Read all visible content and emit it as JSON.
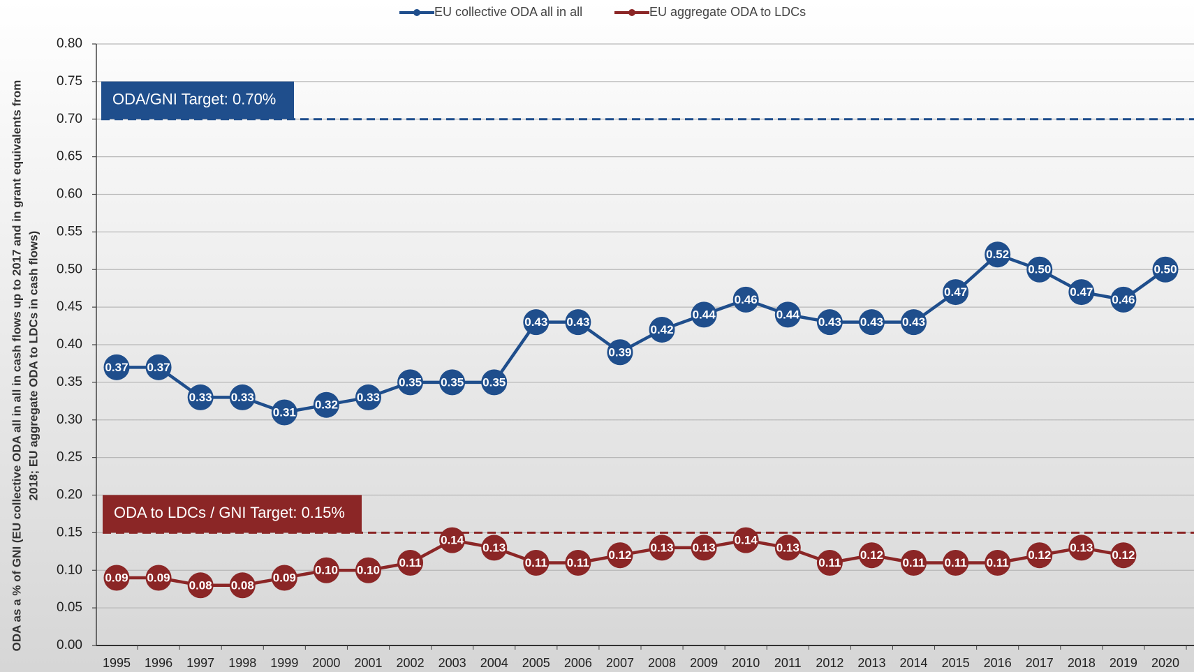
{
  "chart_data": {
    "type": "line",
    "y_label": [
      "ODA as a % of GNI (EU collective ODA all in all in cash flows up to 2017 and in grant equivalents from",
      "2018;  EU aggregate ODA to LDCs in cash flows)"
    ],
    "categories": [
      "1995",
      "1996",
      "1997",
      "1998",
      "1999",
      "2000",
      "2001",
      "2002",
      "2003",
      "2004",
      "2005",
      "2006",
      "2007",
      "2008",
      "2009",
      "2010",
      "2011",
      "2012",
      "2013",
      "2014",
      "2015",
      "2016",
      "2017",
      "2018",
      "2019",
      "2020"
    ],
    "series": [
      {
        "name": "EU collective ODA all in all",
        "color": "#1f4e8c",
        "values": [
          0.37,
          0.37,
          0.33,
          0.33,
          0.31,
          0.32,
          0.33,
          0.35,
          0.35,
          0.35,
          0.43,
          0.43,
          0.39,
          0.42,
          0.44,
          0.46,
          0.44,
          0.43,
          0.43,
          0.43,
          0.47,
          0.52,
          0.5,
          0.47,
          0.46,
          0.5
        ],
        "value_labels": [
          "0.37",
          "0.37",
          "0.33",
          "0.33",
          "0.31",
          "0.32",
          "0.33",
          "0.35",
          "0.35",
          "0.35",
          "0.43",
          "0.43",
          "0.39",
          "0.42",
          "0.44",
          "0.46",
          "0.44",
          "0.43",
          "0.43",
          "0.43",
          "0.47",
          "0.52",
          "0.50",
          "0.47",
          "0.46",
          "0.50"
        ]
      },
      {
        "name": "EU aggregate ODA to LDCs",
        "color": "#8b2626",
        "values": [
          0.09,
          0.09,
          0.08,
          0.08,
          0.09,
          0.1,
          0.1,
          0.11,
          0.14,
          0.13,
          0.11,
          0.11,
          0.12,
          0.13,
          0.13,
          0.14,
          0.13,
          0.11,
          0.12,
          0.11,
          0.11,
          0.11,
          0.12,
          0.13,
          0.12,
          null
        ],
        "value_labels": [
          "0.09",
          "0.09",
          "0.08",
          "0.08",
          "0.09",
          "0.10",
          "0.10",
          "0.11",
          "0.14",
          "0.13",
          "0.11",
          "0.11",
          "0.12",
          "0.13",
          "0.13",
          "0.14",
          "0.13",
          "0.11",
          "0.12",
          "0.11",
          "0.11",
          "0.11",
          "0.12",
          "0.13",
          "0.12",
          null
        ]
      }
    ],
    "targets": [
      {
        "label": "ODA/GNI Target: 0.70%",
        "value": 0.7,
        "color": "#1f4e8c"
      },
      {
        "label": "ODA to LDCs / GNI Target: 0.15%",
        "value": 0.15,
        "color": "#8b2626"
      }
    ],
    "ylim": [
      0,
      0.8
    ],
    "yticks": [
      {
        "value": 0,
        "label": "0.00"
      },
      {
        "value": 0.05,
        "label": "0.05"
      },
      {
        "value": 0.1,
        "label": "0.10"
      },
      {
        "value": 0.15,
        "label": "0.15"
      },
      {
        "value": 0.2,
        "label": "0.20"
      },
      {
        "value": 0.25,
        "label": "0.25"
      },
      {
        "value": 0.3,
        "label": "0.30"
      },
      {
        "value": 0.35,
        "label": "0.35"
      },
      {
        "value": 0.4,
        "label": "0.40"
      },
      {
        "value": 0.45,
        "label": "0.45"
      },
      {
        "value": 0.5,
        "label": "0.50"
      },
      {
        "value": 0.55,
        "label": "0.55"
      },
      {
        "value": 0.6,
        "label": "0.60"
      },
      {
        "value": 0.65,
        "label": "0.65"
      },
      {
        "value": 0.7,
        "label": "0.70"
      },
      {
        "value": 0.75,
        "label": "0.75"
      },
      {
        "value": 0.8,
        "label": "0.80"
      }
    ],
    "grid": true,
    "legend": "top"
  }
}
